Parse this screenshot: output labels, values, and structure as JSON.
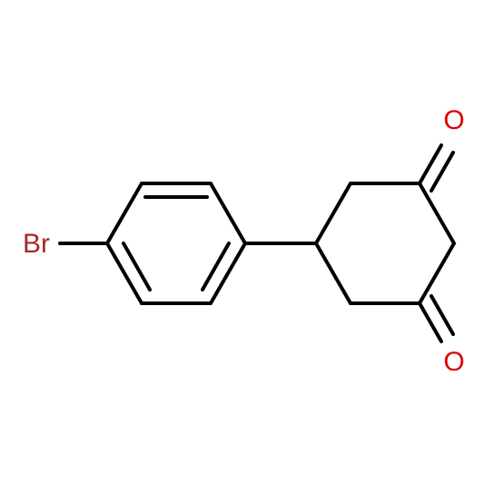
{
  "atoms": {
    "bromine": "Br",
    "oxygen_top": "O",
    "oxygen_bottom": "O"
  }
}
